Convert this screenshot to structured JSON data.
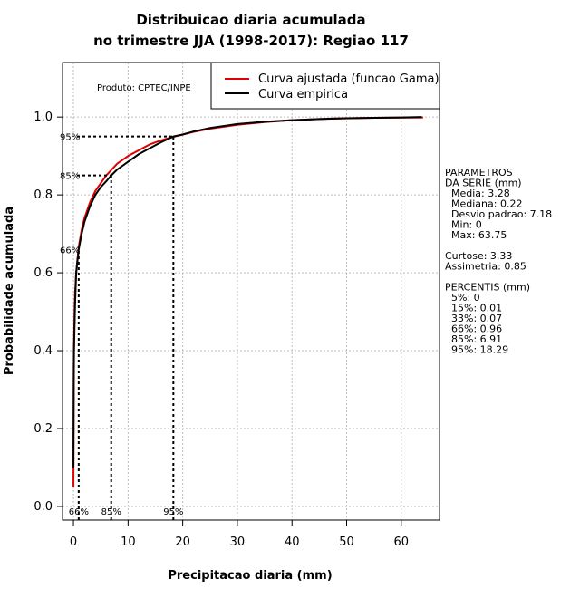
{
  "chart_data": {
    "type": "line",
    "title_line1": "Distribuicao diaria acumulada",
    "title_line2": "no trimestre JJA (1998-2017): Regiao 117",
    "xlabel": "Precipitacao diaria (mm)",
    "ylabel": "Probabilidade acumulada",
    "xlim": [
      -2,
      67
    ],
    "ylim": [
      -0.035,
      1.14
    ],
    "x_ticks": [
      0,
      10,
      20,
      30,
      40,
      50,
      60
    ],
    "y_ticks": [
      0.0,
      0.2,
      0.4,
      0.6,
      0.8,
      1.0
    ],
    "y_tick_labels": [
      "0.0",
      "0.2",
      "0.4",
      "0.6",
      "0.8",
      "1.0"
    ],
    "grid": true,
    "legend_position": "top-right",
    "product_label": "Produto: CPTEC/INPE",
    "series": [
      {
        "name": "Curva ajustada (funcao Gama)",
        "color": "#e00000",
        "x": [
          0.0,
          0.05,
          0.1,
          0.2,
          0.3,
          0.5,
          0.7,
          1.0,
          1.5,
          2.0,
          3.0,
          4.0,
          5.0,
          6.0,
          7.0,
          8.0,
          10.0,
          12.0,
          14.0,
          16.0,
          18.0,
          20.0,
          22.0,
          25.0,
          30.0,
          35.0,
          40.0,
          47.0,
          55.0,
          64.0
        ],
        "y": [
          0.05,
          0.36,
          0.42,
          0.5,
          0.55,
          0.6,
          0.63,
          0.67,
          0.71,
          0.74,
          0.78,
          0.81,
          0.83,
          0.85,
          0.865,
          0.88,
          0.9,
          0.915,
          0.93,
          0.94,
          0.948,
          0.955,
          0.962,
          0.97,
          0.98,
          0.987,
          0.992,
          0.996,
          0.998,
          0.999
        ]
      },
      {
        "name": "Curva empirica",
        "color": "#000000",
        "x": [
          0.0,
          0.01,
          0.05,
          0.1,
          0.3,
          0.5,
          0.96,
          1.5,
          2.0,
          3.0,
          4.0,
          5.0,
          6.0,
          6.91,
          8.0,
          10.0,
          12.0,
          14.0,
          16.0,
          18.29,
          20.0,
          22.0,
          25.0,
          30.0,
          35.0,
          40.0,
          45.0,
          50.0,
          55.0,
          60.0,
          63.75
        ],
        "y": [
          0.1,
          0.15,
          0.3,
          0.4,
          0.52,
          0.6,
          0.66,
          0.7,
          0.73,
          0.77,
          0.8,
          0.82,
          0.835,
          0.85,
          0.865,
          0.885,
          0.905,
          0.92,
          0.935,
          0.95,
          0.955,
          0.963,
          0.972,
          0.982,
          0.988,
          0.992,
          0.995,
          0.997,
          0.998,
          0.999,
          1.0
        ]
      }
    ],
    "percentile_guides": [
      {
        "p": 0.66,
        "x": 0.96,
        "label": "66%",
        "show_horizontal_line": false
      },
      {
        "p": 0.85,
        "x": 6.91,
        "label": "85%",
        "show_horizontal_line": true
      },
      {
        "p": 0.95,
        "x": 18.29,
        "label": "95%",
        "show_horizontal_line": true
      }
    ],
    "side_panel": [
      "PARAMETROS",
      "DA SERIE (mm)",
      "  Media: 3.28",
      "  Mediana: 0.22",
      "  Desvio padrao: 7.18",
      "  Min: 0",
      "  Max: 63.75",
      "",
      "Curtose: 3.33",
      "Assimetria: 0.85",
      "",
      "PERCENTIS (mm)",
      "  5%: 0",
      "  15%: 0.01",
      "  33%: 0.07",
      "  66%: 0.96",
      "  85%: 6.91",
      "  95%: 18.29"
    ]
  }
}
